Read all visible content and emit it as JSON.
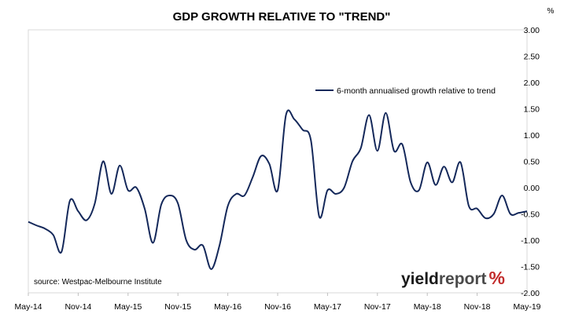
{
  "chart_data": {
    "type": "line",
    "title": "GDP GROWTH RELATIVE TO \"TREND\"",
    "y_unit": "%",
    "ylim": [
      -2.0,
      3.0
    ],
    "y_ticks": [
      "3.00",
      "2.50",
      "2.00",
      "1.50",
      "1.00",
      "0.50",
      "0.00",
      "-0.50",
      "-1.00",
      "-1.50",
      "-2.00"
    ],
    "x_ticks": [
      "May-14",
      "Nov-14",
      "May-15",
      "Nov-15",
      "May-16",
      "Nov-16",
      "May-17",
      "Nov-17",
      "May-18",
      "Nov-18",
      "May-19"
    ],
    "grid": false,
    "legend_position": "top-right",
    "source": "source: Westpac-Melbourne Institute",
    "series": [
      {
        "name": "6-month annualised growth relative to trend",
        "color": "#14285a",
        "x": [
          "May-14",
          "Jun-14",
          "Jul-14",
          "Aug-14",
          "Sep-14",
          "Oct-14",
          "Nov-14",
          "Dec-14",
          "Jan-15",
          "Feb-15",
          "Mar-15",
          "Apr-15",
          "May-15",
          "Jun-15",
          "Jul-15",
          "Aug-15",
          "Sep-15",
          "Oct-15",
          "Nov-15",
          "Dec-15",
          "Jan-16",
          "Feb-16",
          "Mar-16",
          "Apr-16",
          "May-16",
          "Jun-16",
          "Jul-16",
          "Aug-16",
          "Sep-16",
          "Oct-16",
          "Nov-16",
          "Dec-16",
          "Jan-17",
          "Feb-17",
          "Mar-17",
          "Apr-17",
          "May-17",
          "Jun-17",
          "Jul-17",
          "Aug-17",
          "Sep-17",
          "Oct-17",
          "Nov-17",
          "Dec-17",
          "Jan-18",
          "Feb-18",
          "Mar-18",
          "Apr-18",
          "May-18",
          "Jun-18",
          "Jul-18",
          "Aug-18",
          "Sep-18",
          "Oct-18",
          "Nov-18",
          "Dec-18",
          "Jan-19",
          "Feb-19",
          "Mar-19",
          "Apr-19",
          "May-19"
        ],
        "values": [
          -0.65,
          -0.72,
          -0.78,
          -0.9,
          -1.22,
          -0.25,
          -0.45,
          -0.62,
          -0.3,
          0.5,
          -0.12,
          0.42,
          -0.05,
          0.0,
          -0.4,
          -1.05,
          -0.32,
          -0.15,
          -0.3,
          -1.0,
          -1.18,
          -1.1,
          -1.55,
          -1.1,
          -0.35,
          -0.12,
          -0.15,
          0.2,
          0.6,
          0.45,
          -0.05,
          1.38,
          1.3,
          1.1,
          0.9,
          -0.55,
          -0.05,
          -0.12,
          0.0,
          0.5,
          0.75,
          1.38,
          0.7,
          1.42,
          0.7,
          0.82,
          0.1,
          -0.05,
          0.48,
          0.05,
          0.4,
          0.1,
          0.48,
          -0.35,
          -0.4,
          -0.58,
          -0.5,
          -0.15,
          -0.5,
          -0.48,
          -0.45
        ]
      }
    ]
  },
  "branding": {
    "logo_word_1": "yield",
    "logo_word_2": "report",
    "logo_symbol": "%"
  }
}
